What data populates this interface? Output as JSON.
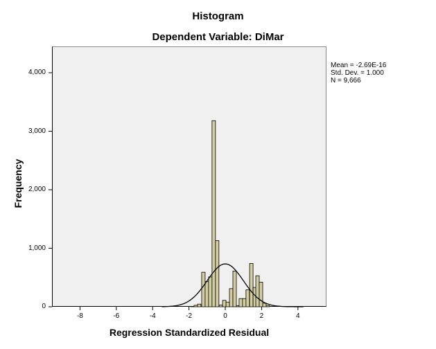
{
  "chart_data": {
    "type": "bar",
    "title": "Histogram",
    "subtitle": "Dependent Variable: DiMar",
    "xlabel": "Regression Standardized Residual",
    "ylabel": "Frequency",
    "xlim": [
      -9.7,
      5.5
    ],
    "ylim": [
      0,
      4450
    ],
    "x_ticks": [
      -8,
      -6,
      -4,
      -2,
      0,
      2,
      4
    ],
    "y_ticks": [
      0,
      1000,
      2000,
      3000,
      4000
    ],
    "x_tick_labels": [
      "-8",
      "-6",
      "-4",
      "-2",
      "0",
      "2",
      "4"
    ],
    "y_tick_labels": [
      "0",
      "1,000",
      "2,000",
      "3,000",
      "4,000"
    ],
    "bin_width": 0.19,
    "bins": [
      {
        "x": -1.91,
        "count": 5
      },
      {
        "x": -1.72,
        "count": 25
      },
      {
        "x": -1.53,
        "count": 45
      },
      {
        "x": -1.3,
        "count": 590
      },
      {
        "x": -1.11,
        "count": 430
      },
      {
        "x": -0.92,
        "count": 510
      },
      {
        "x": -0.73,
        "count": 3180
      },
      {
        "x": -0.54,
        "count": 1130
      },
      {
        "x": -0.34,
        "count": 30
      },
      {
        "x": -0.15,
        "count": 110
      },
      {
        "x": 0.04,
        "count": 80
      },
      {
        "x": 0.23,
        "count": 310
      },
      {
        "x": 0.42,
        "count": 610
      },
      {
        "x": 0.61,
        "count": 20
      },
      {
        "x": 0.76,
        "count": 140
      },
      {
        "x": 0.95,
        "count": 140
      },
      {
        "x": 1.14,
        "count": 290
      },
      {
        "x": 1.34,
        "count": 740
      },
      {
        "x": 1.53,
        "count": 330
      },
      {
        "x": 1.68,
        "count": 530
      },
      {
        "x": 1.87,
        "count": 420
      },
      {
        "x": 2.06,
        "count": 60
      },
      {
        "x": 2.25,
        "count": 20
      }
    ],
    "normal_curve": {
      "mean": 0,
      "sd": 1.0,
      "n": 9666
    },
    "annotations": [
      "Mean = -2.69E-16",
      "Std. Dev. = 1.000",
      "N = 9,666"
    ],
    "bar_color": "#d3cea1",
    "background": "#f0f0f0",
    "grid": false,
    "legend_position": "right"
  },
  "stats": {
    "mean": "Mean = -2.69E-16",
    "sd": "Std. Dev. = 1.000",
    "n": "N = 9,666"
  }
}
